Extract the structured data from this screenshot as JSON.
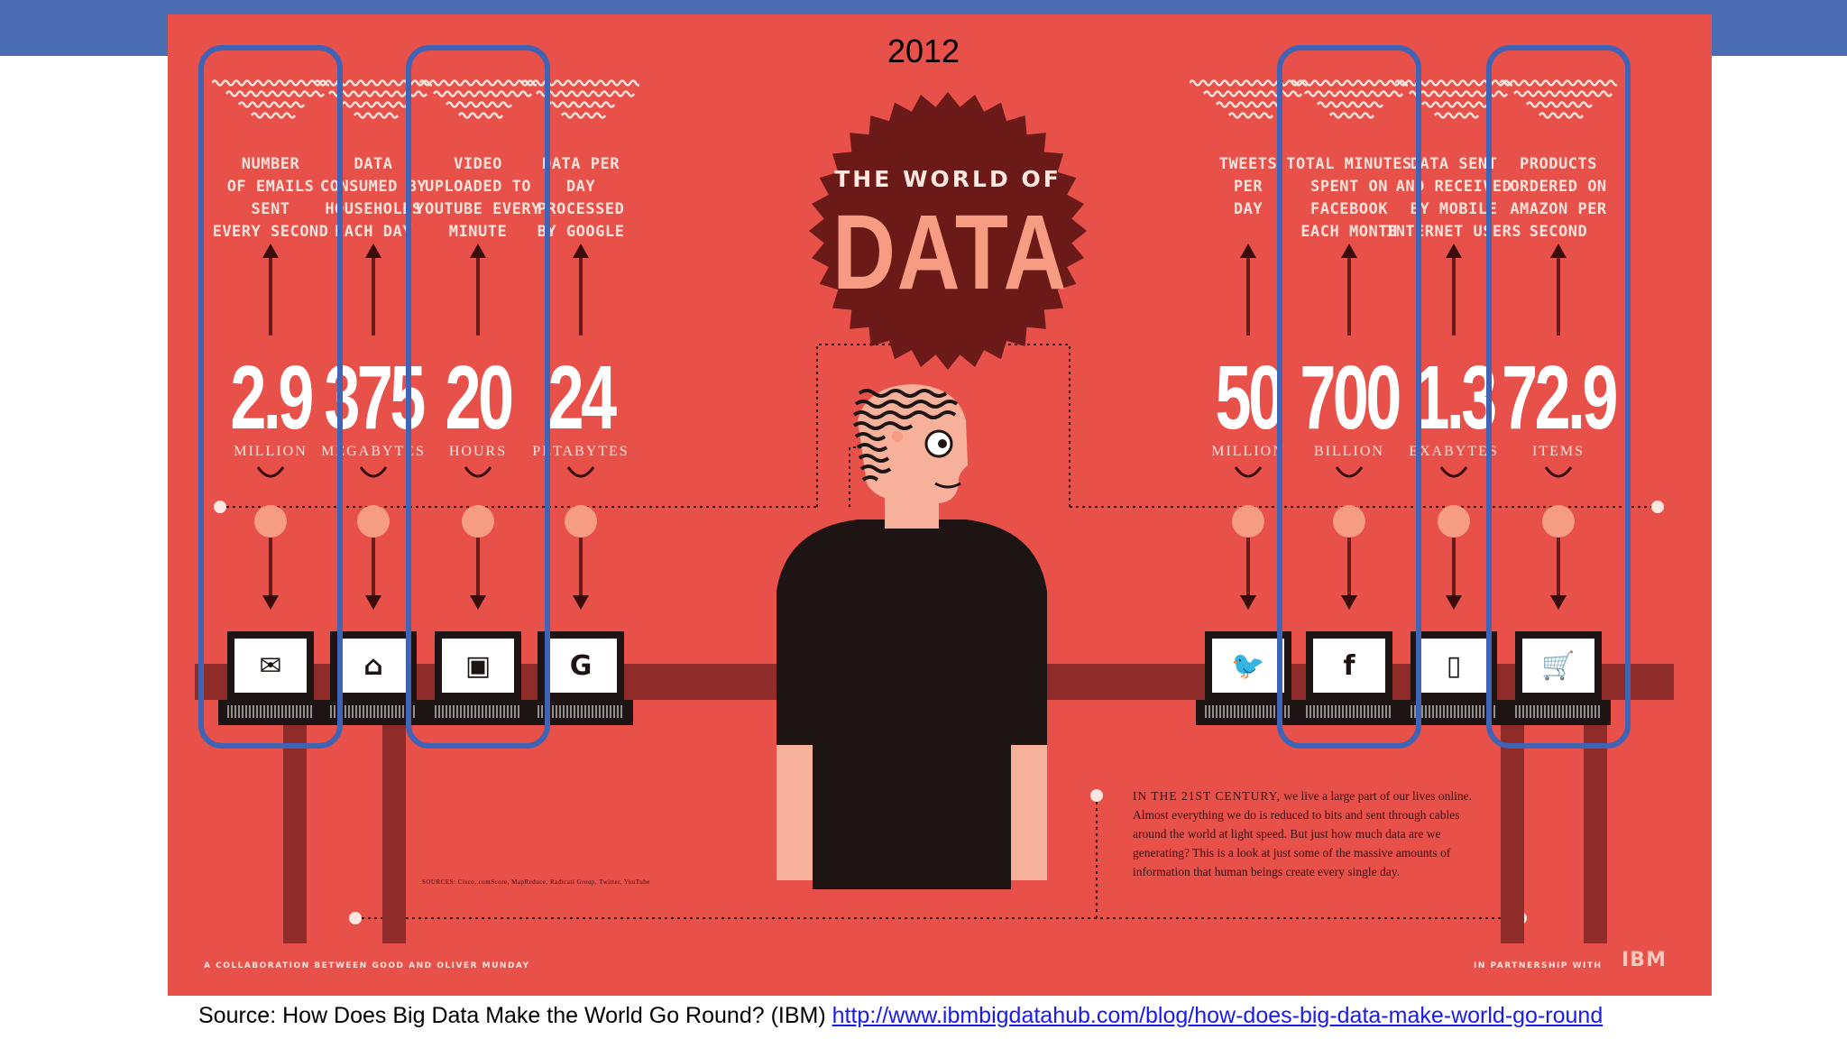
{
  "year": "2012",
  "source": {
    "prefix": "Source: How Does Big Data Make the World Go Round? (IBM) ",
    "link_text": "http://www.ibmbigdatahub.com/blog/how-does-big-data-make-world-go-round"
  },
  "badge": {
    "top": "THE WORLD OF",
    "big": "DATA"
  },
  "columns": [
    {
      "label": "NUMBER\nOF EMAILS\nSENT\nEVERY SECOND",
      "value": "2.9",
      "unit": "MILLION",
      "icon": "envelope-icon",
      "glyph": "✉",
      "highlighted": true
    },
    {
      "label": "DATA\nCONSUMED BY\nHOUSEHOLDS\nEACH DAY",
      "value": "375",
      "unit": "MEGABYTES",
      "icon": "house-icon",
      "glyph": "⌂",
      "highlighted": false
    },
    {
      "label": "VIDEO\nUPLOADED TO\nYOUTUBE EVERY\nMINUTE",
      "value": "20",
      "unit": "HOURS",
      "icon": "tv-icon",
      "glyph": "▣",
      "highlighted": true
    },
    {
      "label": "DATA PER\nDAY\nPROCESSED\nBY GOOGLE",
      "value": "24",
      "unit": "PETABYTES",
      "icon": "google-icon",
      "glyph": "G",
      "highlighted": false
    },
    {
      "label": "TWEETS\nPER\nDAY",
      "value": "50",
      "unit": "MILLION",
      "icon": "bird-icon",
      "glyph": "🐦",
      "highlighted": false
    },
    {
      "label": "TOTAL MINUTES\nSPENT ON\nFACEBOOK\nEACH MONTH",
      "value": "700",
      "unit": "BILLION",
      "icon": "facebook-icon",
      "glyph": "f",
      "highlighted": true
    },
    {
      "label": "DATA SENT\nAND RECEIVED\nBY MOBILE\nINTERNET USERS",
      "value": "1.3",
      "unit": "EXABYTES",
      "icon": "mobile-phone-icon",
      "glyph": "▯",
      "highlighted": false
    },
    {
      "label": "PRODUCTS\nORDERED ON\nAMAZON PER\nSECOND",
      "value": "72.9",
      "unit": "ITEMS",
      "icon": "shopping-cart-icon",
      "glyph": "🛒",
      "highlighted": true
    }
  ],
  "paragraph": {
    "lead": "IN THE 21ST CENTURY,",
    "body": " we live a large part of our lives online. Almost everything we do is reduced to bits and sent through cables around the world at light speed. But just how much data are we generating? This is a look at just some of the massive amounts of information that human beings create every single day."
  },
  "sources_line": "SOURCES: Cisco, comScore, MapReduce, Radicati Group, Twitter, YouTube",
  "collab": "A COLLABORATION BETWEEN GOOD AND OLIVER MUNDAY",
  "partner": "IN PARTNERSHIP WITH",
  "ibm": "IBM",
  "colors": {
    "poster": "#e8504a",
    "dark": "#6b1a18",
    "highlight": "#3f63b5",
    "accent": "#f59c83"
  }
}
